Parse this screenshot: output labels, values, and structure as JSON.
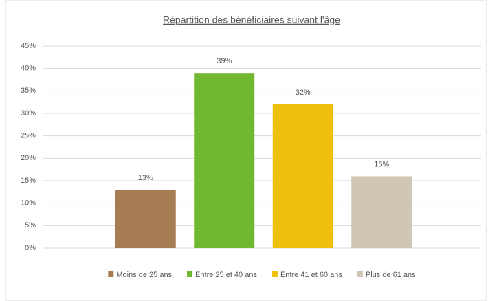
{
  "chart_data": {
    "type": "bar",
    "title": "Répartition des bénéficiaires suivant l'âge",
    "categories": [
      "Moins de 25 ans",
      "Entre 25 et 40 ans",
      "Entre 41 et 60 ans",
      "Plus de 61 ans"
    ],
    "values": [
      13,
      39,
      32,
      16
    ],
    "value_labels": [
      "13%",
      "39%",
      "32%",
      "16%"
    ],
    "colors": [
      "#a67c52",
      "#70b830",
      "#f0c010",
      "#d0c6b4"
    ],
    "ylim": [
      0,
      45
    ],
    "yticks": [
      {
        "value": 0,
        "label": "0%"
      },
      {
        "value": 5,
        "label": "5%"
      },
      {
        "value": 10,
        "label": "10%"
      },
      {
        "value": 15,
        "label": "15%"
      },
      {
        "value": 20,
        "label": "20%"
      },
      {
        "value": 25,
        "label": "25%"
      },
      {
        "value": 30,
        "label": "30%"
      },
      {
        "value": 35,
        "label": "35%"
      },
      {
        "value": 40,
        "label": "40%"
      },
      {
        "value": 45,
        "label": "45%"
      }
    ],
    "grid": true,
    "legend": "bottom"
  }
}
